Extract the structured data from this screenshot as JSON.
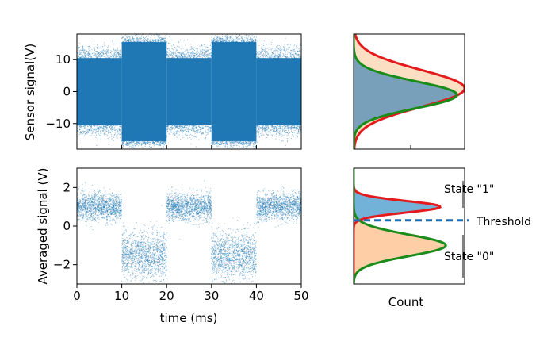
{
  "chart_data": [
    {
      "panel": "sensor-signal",
      "type": "scatter",
      "ylabel": "Sensor signal(V)",
      "xlim": [
        0,
        50
      ],
      "ylim": [
        -18,
        18
      ],
      "yticks": [
        -10,
        0,
        10
      ],
      "ytick_labels": [
        "−10",
        "0",
        "10"
      ],
      "segments": [
        {
          "x_start": 0,
          "x_end": 10,
          "core_band": [
            -10.5,
            10.5
          ],
          "tail_band": [
            -15,
            15
          ]
        },
        {
          "x_start": 10,
          "x_end": 20,
          "core_band": [
            -15.5,
            15.5
          ],
          "tail_band": [
            -18,
            18
          ]
        },
        {
          "x_start": 20,
          "x_end": 30,
          "core_band": [
            -10.5,
            10.5
          ],
          "tail_band": [
            -15,
            15
          ]
        },
        {
          "x_start": 30,
          "x_end": 40,
          "core_band": [
            -15.5,
            15.5
          ],
          "tail_band": [
            -18,
            18
          ]
        },
        {
          "x_start": 40,
          "x_end": 50,
          "core_band": [
            -10.5,
            10.5
          ],
          "tail_band": [
            -15,
            15
          ]
        }
      ],
      "color": "#1f77b4"
    },
    {
      "panel": "sensor-histogram",
      "type": "area",
      "orientation": "horizontal",
      "ylim": [
        -18,
        18
      ],
      "series": [
        {
          "mean": 1,
          "sigma": 5.8,
          "peak": 1.0,
          "fill": "#fcdcc0",
          "edge": "#e41a1c"
        },
        {
          "mean": -1,
          "sigma": 4.2,
          "peak": 0.93,
          "fill": "#1f77b4",
          "edge": "#1a8c1a"
        }
      ]
    },
    {
      "panel": "averaged-signal",
      "type": "scatter",
      "ylabel": "Averaged signal (V)",
      "xlabel": "time (ms)",
      "xlim": [
        0,
        50
      ],
      "ylim": [
        -3,
        3
      ],
      "xticks": [
        0,
        10,
        20,
        30,
        40,
        50
      ],
      "xtick_labels": [
        "0",
        "10",
        "20",
        "30",
        "40",
        "50"
      ],
      "yticks": [
        -2,
        0,
        2
      ],
      "ytick_labels": [
        "−2",
        "0",
        "2"
      ],
      "segments": [
        {
          "x_start": 0,
          "x_end": 10,
          "mean": 1.0,
          "spread": 0.35
        },
        {
          "x_start": 10,
          "x_end": 20,
          "mean": -1.5,
          "spread": 0.6
        },
        {
          "x_start": 20,
          "x_end": 30,
          "mean": 1.0,
          "spread": 0.35
        },
        {
          "x_start": 30,
          "x_end": 40,
          "mean": -1.5,
          "spread": 0.6
        },
        {
          "x_start": 40,
          "x_end": 50,
          "mean": 1.0,
          "spread": 0.35
        }
      ],
      "color": "#1f77b4"
    },
    {
      "panel": "averaged-histogram",
      "type": "area",
      "orientation": "horizontal",
      "xlabel": "Count",
      "ylim": [
        -3,
        3
      ],
      "series": [
        {
          "mean": 1.0,
          "sigma": 0.3,
          "peak": 0.78,
          "fill": "#6baed6",
          "edge": "#e41a1c"
        },
        {
          "mean": -1.0,
          "sigma": 0.55,
          "peak": 0.83,
          "fill": "#fdae6b",
          "edge": "#1a8c1a"
        }
      ],
      "threshold": 0.3,
      "annotations": {
        "state_1": "State \"1\"",
        "threshold": "Threshold",
        "state_0": "State \"0\""
      }
    }
  ]
}
